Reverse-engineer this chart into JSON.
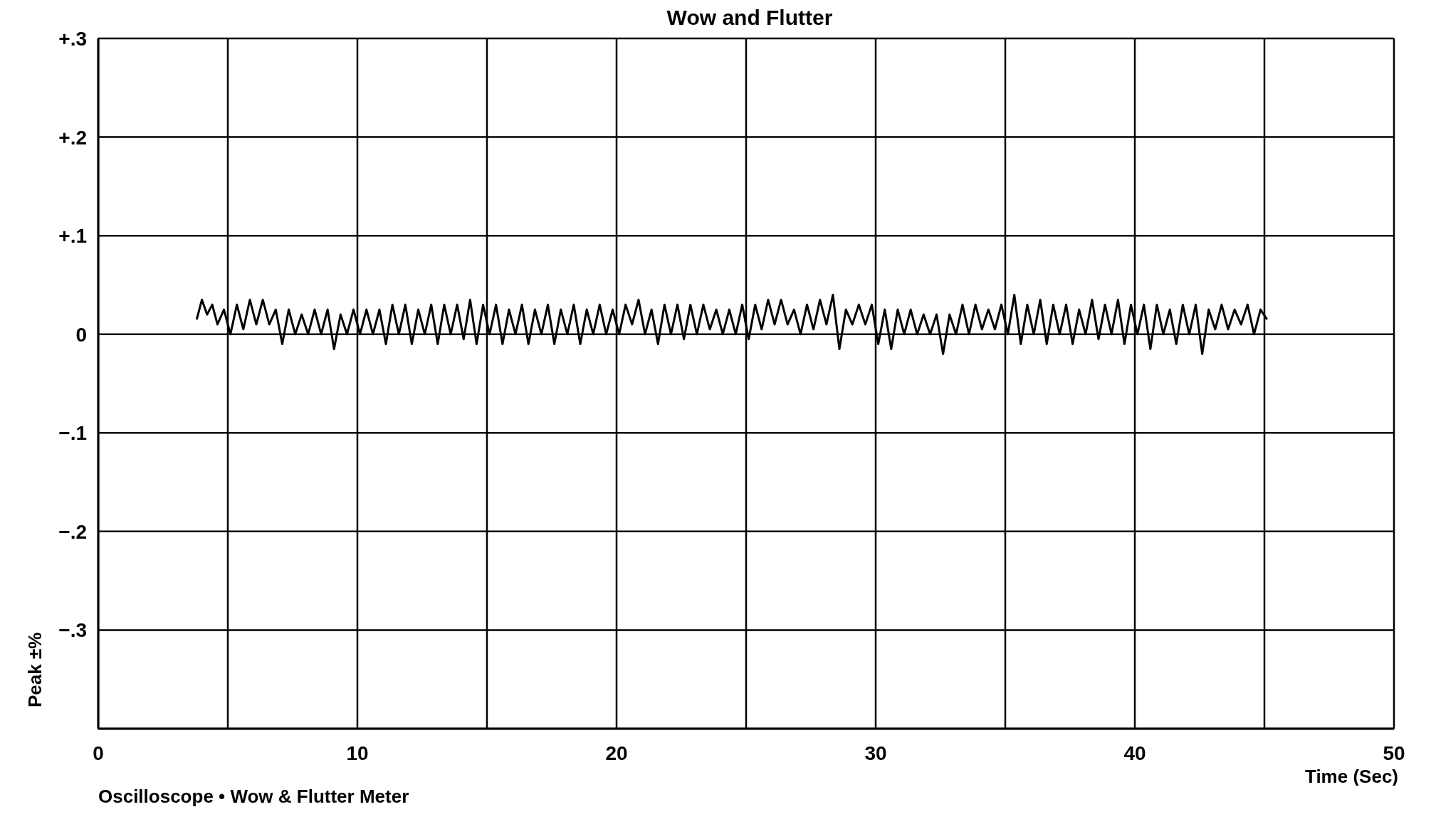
{
  "chart_data": {
    "type": "line",
    "title": "Wow and Flutter",
    "xlabel": "Time (Sec)",
    "ylabel": "Peak ±%",
    "annotations": [
      "Oscilloscope • Wow & Flutter Meter"
    ],
    "xlim": [
      0,
      50
    ],
    "xticks": [
      0,
      {
        "value": 5,
        "label": null
      },
      10,
      {
        "value": 15,
        "label": null
      },
      20,
      {
        "value": 25,
        "label": null
      },
      30,
      {
        "value": 35,
        "label": null
      },
      40,
      {
        "value": 45,
        "label": null
      },
      50
    ],
    "ylim": [
      -0.4,
      0.3
    ],
    "yticks": [
      {
        "value": -0.4,
        "label": null
      },
      {
        "value": -0.3,
        "label": "−.3"
      },
      {
        "value": -0.2,
        "label": "−.2"
      },
      {
        "value": -0.1,
        "label": "−.1"
      },
      0,
      {
        "value": 0.1,
        "label": "+.1"
      },
      {
        "value": 0.2,
        "label": "+.2"
      },
      {
        "value": 0.3,
        "label": "+.3"
      }
    ],
    "grid": true,
    "line_style": "solid",
    "marker": "none",
    "series": [
      {
        "color": "#000000",
        "x": [
          3.8,
          4.0,
          4.2,
          4.4,
          4.6,
          4.85,
          5.1,
          5.35,
          5.6,
          5.85,
          6.1,
          6.35,
          6.6,
          6.85,
          7.1,
          7.35,
          7.6,
          7.85,
          8.1,
          8.35,
          8.6,
          8.85,
          9.1,
          9.35,
          9.6,
          9.85,
          10.1,
          10.35,
          10.6,
          10.85,
          11.1,
          11.35,
          11.6,
          11.85,
          12.1,
          12.35,
          12.6,
          12.85,
          13.1,
          13.35,
          13.6,
          13.85,
          14.1,
          14.35,
          14.6,
          14.85,
          15.1,
          15.35,
          15.6,
          15.85,
          16.1,
          16.35,
          16.6,
          16.85,
          17.1,
          17.35,
          17.6,
          17.85,
          18.1,
          18.35,
          18.6,
          18.85,
          19.1,
          19.35,
          19.6,
          19.85,
          20.1,
          20.35,
          20.6,
          20.85,
          21.1,
          21.35,
          21.6,
          21.85,
          22.1,
          22.35,
          22.6,
          22.85,
          23.1,
          23.35,
          23.6,
          23.85,
          24.1,
          24.35,
          24.6,
          24.85,
          25.1,
          25.35,
          25.6,
          25.85,
          26.1,
          26.35,
          26.6,
          26.85,
          27.1,
          27.35,
          27.6,
          27.85,
          28.1,
          28.35,
          28.6,
          28.85,
          29.1,
          29.35,
          29.6,
          29.85,
          30.1,
          30.35,
          30.6,
          30.85,
          31.1,
          31.35,
          31.6,
          31.85,
          32.1,
          32.35,
          32.6,
          32.85,
          33.1,
          33.35,
          33.6,
          33.85,
          34.1,
          34.35,
          34.6,
          34.85,
          35.1,
          35.35,
          35.6,
          35.85,
          36.1,
          36.35,
          36.6,
          36.85,
          37.1,
          37.35,
          37.6,
          37.85,
          38.1,
          38.35,
          38.6,
          38.85,
          39.1,
          39.35,
          39.6,
          39.85,
          40.1,
          40.35,
          40.6,
          40.85,
          41.1,
          41.35,
          41.6,
          41.85,
          42.1,
          42.35,
          42.6,
          42.85,
          43.1,
          43.35,
          43.6,
          43.85,
          44.1,
          44.35,
          44.6,
          44.85,
          45.1
        ],
        "values": [
          0.015,
          0.035,
          0.02,
          0.03,
          0.01,
          0.025,
          0.0,
          0.03,
          0.005,
          0.035,
          0.01,
          0.035,
          0.01,
          0.025,
          -0.01,
          0.025,
          0.0,
          0.02,
          0.0,
          0.025,
          0.0,
          0.025,
          -0.015,
          0.02,
          0.0,
          0.025,
          0.0,
          0.025,
          0.0,
          0.025,
          -0.01,
          0.03,
          0.0,
          0.03,
          -0.01,
          0.025,
          0.0,
          0.03,
          -0.01,
          0.03,
          0.0,
          0.03,
          -0.005,
          0.035,
          -0.01,
          0.03,
          0.0,
          0.03,
          -0.01,
          0.025,
          0.0,
          0.03,
          -0.01,
          0.025,
          0.0,
          0.03,
          -0.01,
          0.025,
          0.0,
          0.03,
          -0.01,
          0.025,
          0.0,
          0.03,
          0.0,
          0.025,
          0.0,
          0.03,
          0.01,
          0.035,
          0.0,
          0.025,
          -0.01,
          0.03,
          0.0,
          0.03,
          -0.005,
          0.03,
          0.0,
          0.03,
          0.005,
          0.025,
          0.0,
          0.025,
          0.0,
          0.03,
          -0.005,
          0.03,
          0.005,
          0.035,
          0.01,
          0.035,
          0.01,
          0.025,
          0.0,
          0.03,
          0.005,
          0.035,
          0.01,
          0.04,
          -0.015,
          0.025,
          0.01,
          0.03,
          0.01,
          0.03,
          -0.01,
          0.025,
          -0.015,
          0.025,
          0.0,
          0.025,
          0.0,
          0.02,
          0.0,
          0.02,
          -0.02,
          0.02,
          0.0,
          0.03,
          0.0,
          0.03,
          0.005,
          0.025,
          0.005,
          0.03,
          0.0,
          0.04,
          -0.01,
          0.03,
          0.0,
          0.035,
          -0.01,
          0.03,
          0.0,
          0.03,
          -0.01,
          0.025,
          0.0,
          0.035,
          -0.005,
          0.03,
          0.0,
          0.035,
          -0.01,
          0.03,
          0.0,
          0.03,
          -0.015,
          0.03,
          0.0,
          0.025,
          -0.01,
          0.03,
          0.0,
          0.03,
          -0.02,
          0.025,
          0.005,
          0.03,
          0.005,
          0.025,
          0.01,
          0.03,
          0.0,
          0.025,
          0.015
        ]
      }
    ]
  }
}
